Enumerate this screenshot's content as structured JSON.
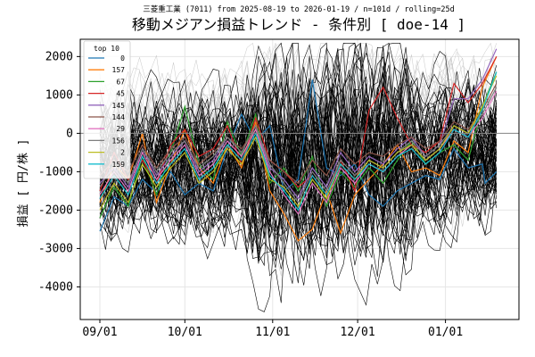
{
  "chart_data": {
    "type": "line",
    "title": "移動メジアン損益トレンド - 条件別 [ doe-14 ]",
    "subtitle": "三菱重工業 (7011) from 2025-08-19 to 2026-01-19 / n=101d / rolling=25d",
    "xlabel": "",
    "ylabel": "損益 [ 円/株 ]",
    "x_ticks": [
      "09/01",
      "10/01",
      "11/01",
      "12/01",
      "01/01"
    ],
    "y_ticks": [
      -4000,
      -3000,
      -2000,
      -1000,
      0,
      1000,
      2000
    ],
    "ylim": [
      -4850,
      2450
    ],
    "grid": true,
    "legend": {
      "title": "top 10",
      "placement": "top-left",
      "entries": [
        {
          "name": "0",
          "color": "#1f77b4"
        },
        {
          "name": "157",
          "color": "#ff7f0e"
        },
        {
          "name": "67",
          "color": "#2ca02c"
        },
        {
          "name": "45",
          "color": "#d62728"
        },
        {
          "name": "145",
          "color": "#9467bd"
        },
        {
          "name": "144",
          "color": "#8c564b"
        },
        {
          "name": "29",
          "color": "#e377c2"
        },
        {
          "name": "156",
          "color": "#7f7f7f"
        },
        {
          "name": "2",
          "color": "#bcbd22"
        },
        {
          "name": "159",
          "color": "#17becf"
        }
      ]
    },
    "series_top": [
      {
        "name": "0",
        "color": "#1f77b4",
        "points": [
          [
            0,
            -2550
          ],
          [
            5,
            -1650
          ],
          [
            10,
            -1900
          ],
          [
            15,
            -1200
          ],
          [
            20,
            -1550
          ],
          [
            25,
            -1000
          ],
          [
            30,
            -1600
          ],
          [
            35,
            -1300
          ],
          [
            40,
            -1500
          ],
          [
            45,
            -400
          ],
          [
            50,
            500
          ],
          [
            55,
            -200
          ],
          [
            60,
            200
          ],
          [
            65,
            -1500
          ],
          [
            70,
            -1200
          ],
          [
            75,
            1400
          ],
          [
            80,
            -900
          ],
          [
            85,
            -1100
          ],
          [
            90,
            -800
          ],
          [
            95,
            -1600
          ],
          [
            100,
            -1900
          ],
          [
            105,
            -1500
          ],
          [
            110,
            -1300
          ],
          [
            115,
            -1100
          ],
          [
            120,
            -1200
          ],
          [
            125,
            -400
          ],
          [
            130,
            -900
          ],
          [
            135,
            -800
          ],
          [
            136,
            -1300
          ],
          [
            140,
            -1000
          ]
        ]
      },
      {
        "name": "157",
        "color": "#ff7f0e",
        "points": [
          [
            0,
            -1800
          ],
          [
            5,
            -800
          ],
          [
            10,
            -1200
          ],
          [
            15,
            0
          ],
          [
            20,
            -1800
          ],
          [
            25,
            -800
          ],
          [
            30,
            100
          ],
          [
            35,
            -900
          ],
          [
            40,
            -1300
          ],
          [
            45,
            -300
          ],
          [
            50,
            -900
          ],
          [
            55,
            300
          ],
          [
            60,
            -1500
          ],
          [
            65,
            -2100
          ],
          [
            70,
            -2800
          ],
          [
            75,
            -2500
          ],
          [
            80,
            -1500
          ],
          [
            85,
            -2600
          ],
          [
            90,
            -1600
          ],
          [
            95,
            -1200
          ],
          [
            100,
            -800
          ],
          [
            105,
            -300
          ],
          [
            110,
            -1000
          ],
          [
            115,
            -900
          ],
          [
            120,
            -1100
          ],
          [
            125,
            -200
          ],
          [
            130,
            -500
          ],
          [
            135,
            1200
          ],
          [
            140,
            2000
          ]
        ]
      },
      {
        "name": "67",
        "color": "#2ca02c",
        "points": [
          [
            0,
            -2200
          ],
          [
            5,
            -1400
          ],
          [
            10,
            -1900
          ],
          [
            15,
            -600
          ],
          [
            20,
            -1600
          ],
          [
            25,
            -500
          ],
          [
            30,
            700
          ],
          [
            35,
            -800
          ],
          [
            40,
            -1200
          ],
          [
            45,
            300
          ],
          [
            50,
            -600
          ],
          [
            55,
            500
          ],
          [
            60,
            -1300
          ],
          [
            65,
            -900
          ],
          [
            70,
            -1500
          ],
          [
            75,
            -600
          ],
          [
            80,
            -1900
          ],
          [
            85,
            -1000
          ],
          [
            90,
            -1400
          ],
          [
            95,
            -900
          ],
          [
            100,
            -1300
          ],
          [
            105,
            -700
          ],
          [
            110,
            -200
          ],
          [
            115,
            -800
          ],
          [
            120,
            -500
          ],
          [
            125,
            -300
          ],
          [
            130,
            -700
          ],
          [
            135,
            700
          ],
          [
            140,
            1600
          ]
        ]
      },
      {
        "name": "45",
        "color": "#d62728",
        "points": [
          [
            0,
            -1500
          ],
          [
            5,
            -500
          ],
          [
            10,
            -1200
          ],
          [
            15,
            -700
          ],
          [
            20,
            -1300
          ],
          [
            25,
            -300
          ],
          [
            30,
            100
          ],
          [
            35,
            -600
          ],
          [
            40,
            -400
          ],
          [
            45,
            200
          ],
          [
            50,
            -800
          ],
          [
            55,
            400
          ],
          [
            60,
            -700
          ],
          [
            65,
            -1000
          ],
          [
            70,
            -1400
          ],
          [
            75,
            -1100
          ],
          [
            80,
            -1600
          ],
          [
            85,
            -700
          ],
          [
            90,
            -1500
          ],
          [
            95,
            600
          ],
          [
            100,
            1200
          ],
          [
            105,
            400
          ],
          [
            110,
            -300
          ],
          [
            115,
            -500
          ],
          [
            120,
            -200
          ],
          [
            125,
            1300
          ],
          [
            130,
            800
          ],
          [
            135,
            1300
          ],
          [
            140,
            2000
          ]
        ]
      },
      {
        "name": "145",
        "color": "#9467bd",
        "points": [
          [
            0,
            -1300
          ],
          [
            5,
            -900
          ],
          [
            10,
            -1400
          ],
          [
            15,
            -400
          ],
          [
            20,
            -1100
          ],
          [
            25,
            -600
          ],
          [
            30,
            -200
          ],
          [
            35,
            -1000
          ],
          [
            40,
            -700
          ],
          [
            45,
            -100
          ],
          [
            50,
            -500
          ],
          [
            55,
            200
          ],
          [
            60,
            -900
          ],
          [
            65,
            -1200
          ],
          [
            70,
            -1700
          ],
          [
            75,
            -900
          ],
          [
            80,
            -1400
          ],
          [
            85,
            -500
          ],
          [
            90,
            -1000
          ],
          [
            95,
            -600
          ],
          [
            100,
            -800
          ],
          [
            105,
            -400
          ],
          [
            110,
            -100
          ],
          [
            115,
            -600
          ],
          [
            120,
            -300
          ],
          [
            125,
            900
          ],
          [
            130,
            900
          ],
          [
            135,
            1400
          ],
          [
            140,
            2200
          ]
        ]
      },
      {
        "name": "144",
        "color": "#8c564b",
        "points": [
          [
            0,
            -1100
          ],
          [
            5,
            -700
          ],
          [
            10,
            -1000
          ],
          [
            15,
            -300
          ],
          [
            20,
            -900
          ],
          [
            25,
            -400
          ],
          [
            30,
            -100
          ],
          [
            35,
            -800
          ],
          [
            40,
            -500
          ],
          [
            45,
            -100
          ],
          [
            50,
            -400
          ],
          [
            55,
            100
          ],
          [
            60,
            -700
          ],
          [
            65,
            -1000
          ],
          [
            70,
            -1300
          ],
          [
            75,
            -700
          ],
          [
            80,
            -1100
          ],
          [
            85,
            -400
          ],
          [
            90,
            -800
          ],
          [
            95,
            -500
          ],
          [
            100,
            -600
          ],
          [
            105,
            -300
          ],
          [
            110,
            -100
          ],
          [
            115,
            -400
          ],
          [
            120,
            -200
          ],
          [
            125,
            300
          ],
          [
            130,
            100
          ],
          [
            135,
            600
          ],
          [
            140,
            1300
          ]
        ]
      },
      {
        "name": "29",
        "color": "#e377c2",
        "points": [
          [
            0,
            -1600
          ],
          [
            5,
            -1000
          ],
          [
            10,
            -1500
          ],
          [
            15,
            -500
          ],
          [
            20,
            -1200
          ],
          [
            25,
            -700
          ],
          [
            30,
            -300
          ],
          [
            35,
            -1100
          ],
          [
            40,
            -800
          ],
          [
            45,
            -200
          ],
          [
            50,
            -600
          ],
          [
            55,
            100
          ],
          [
            60,
            -1000
          ],
          [
            65,
            -1600
          ],
          [
            70,
            -2100
          ],
          [
            75,
            -1300
          ],
          [
            80,
            -1800
          ],
          [
            85,
            -900
          ],
          [
            90,
            -1300
          ],
          [
            95,
            -800
          ],
          [
            100,
            -1000
          ],
          [
            105,
            -600
          ],
          [
            110,
            -300
          ],
          [
            115,
            -700
          ],
          [
            120,
            -400
          ],
          [
            125,
            100
          ],
          [
            130,
            -100
          ],
          [
            135,
            400
          ],
          [
            140,
            1100
          ]
        ]
      },
      {
        "name": "156",
        "color": "#7f7f7f",
        "points": [
          [
            0,
            -1400
          ],
          [
            5,
            -800
          ],
          [
            10,
            -1300
          ],
          [
            15,
            -400
          ],
          [
            20,
            -1000
          ],
          [
            25,
            -500
          ],
          [
            30,
            -200
          ],
          [
            35,
            -900
          ],
          [
            40,
            -600
          ],
          [
            45,
            -100
          ],
          [
            50,
            -500
          ],
          [
            55,
            200
          ],
          [
            60,
            -800
          ],
          [
            65,
            -1300
          ],
          [
            70,
            -1800
          ],
          [
            75,
            -1000
          ],
          [
            80,
            -1500
          ],
          [
            85,
            -700
          ],
          [
            90,
            -1100
          ],
          [
            95,
            -700
          ],
          [
            100,
            -900
          ],
          [
            105,
            -500
          ],
          [
            110,
            -200
          ],
          [
            115,
            -600
          ],
          [
            120,
            -300
          ],
          [
            125,
            200
          ],
          [
            130,
            0
          ],
          [
            135,
            500
          ],
          [
            140,
            1200
          ]
        ]
      },
      {
        "name": "2",
        "color": "#bcbd22",
        "points": [
          [
            0,
            -2000
          ],
          [
            5,
            -1300
          ],
          [
            10,
            -1800
          ],
          [
            15,
            -800
          ],
          [
            20,
            -1400
          ],
          [
            25,
            -900
          ],
          [
            30,
            -500
          ],
          [
            35,
            -1300
          ],
          [
            40,
            -1000
          ],
          [
            45,
            -400
          ],
          [
            50,
            -800
          ],
          [
            55,
            -100
          ],
          [
            60,
            -1200
          ],
          [
            65,
            -1400
          ],
          [
            70,
            -1900
          ],
          [
            75,
            -1200
          ],
          [
            80,
            -1700
          ],
          [
            85,
            -800
          ],
          [
            90,
            -1200
          ],
          [
            95,
            -700
          ],
          [
            100,
            -900
          ],
          [
            105,
            -500
          ],
          [
            110,
            -300
          ],
          [
            115,
            -700
          ],
          [
            120,
            -400
          ],
          [
            125,
            200
          ],
          [
            130,
            0
          ],
          [
            135,
            700
          ],
          [
            140,
            1500
          ]
        ]
      },
      {
        "name": "159",
        "color": "#17becf",
        "points": [
          [
            0,
            -1700
          ],
          [
            5,
            -1100
          ],
          [
            10,
            -1600
          ],
          [
            15,
            -600
          ],
          [
            20,
            -1300
          ],
          [
            25,
            -800
          ],
          [
            30,
            -400
          ],
          [
            35,
            -1200
          ],
          [
            40,
            -900
          ],
          [
            45,
            -300
          ],
          [
            50,
            -700
          ],
          [
            55,
            0
          ],
          [
            60,
            -1100
          ],
          [
            65,
            -1500
          ],
          [
            70,
            -2000
          ],
          [
            75,
            -1100
          ],
          [
            80,
            -1600
          ],
          [
            85,
            -800
          ],
          [
            90,
            -1200
          ],
          [
            95,
            -800
          ],
          [
            100,
            -1000
          ],
          [
            105,
            -600
          ],
          [
            110,
            -400
          ],
          [
            115,
            -800
          ],
          [
            120,
            -500
          ],
          [
            125,
            100
          ],
          [
            130,
            -100
          ],
          [
            135,
            600
          ],
          [
            140,
            1600
          ]
        ]
      }
    ]
  }
}
